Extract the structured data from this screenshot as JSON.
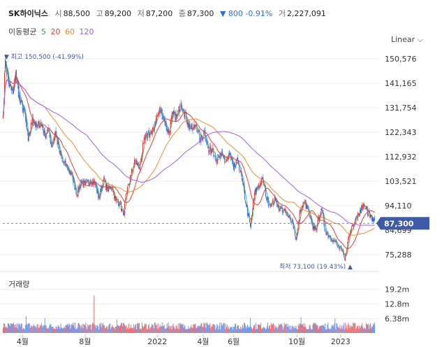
{
  "header": {
    "ticker": "SK하이닉스",
    "open_label": "시",
    "open": "88,500",
    "high_label": "고",
    "high": "89,200",
    "low_label": "저",
    "low": "87,200",
    "close_label": "종",
    "close": "87,300",
    "change": "▼ 800 -0.91%",
    "volume_label": "거",
    "volume": "2,227,091"
  },
  "ma_legend": {
    "title": "이동평균",
    "items": [
      {
        "label": "5",
        "color": "#43a047"
      },
      {
        "label": "20",
        "color": "#e53935"
      },
      {
        "label": "60",
        "color": "#ef8a2a"
      },
      {
        "label": "120",
        "color": "#a05cf0"
      }
    ]
  },
  "scale_toggle": "Linear ⌵",
  "colors": {
    "up": "#e0303a",
    "down": "#2f6ee0",
    "price_tag": "#3f5ba8",
    "grid": "#eeeeee"
  },
  "chart_data": {
    "type": "candlestick",
    "price_axis": {
      "ticks": [
        150576,
        141165,
        131754,
        122343,
        112932,
        103521,
        94110,
        84699,
        75288
      ],
      "tick_labels": [
        "150,576",
        "141,165",
        "131,754",
        "122,343",
        "112,932",
        "103,521",
        "94,110",
        "84,699",
        "75,288"
      ],
      "range": [
        71500,
        152500
      ]
    },
    "volume_axis": {
      "title": "거래량",
      "ticks": [
        19200000,
        12800000,
        6380000
      ],
      "tick_labels": [
        "19.2m",
        "12.8m",
        "6.38m"
      ],
      "range": [
        0,
        24000000
      ]
    },
    "x_axis": {
      "labels": [
        "4월",
        "8월",
        "2022",
        "4월",
        "6월",
        "10월",
        "2023"
      ]
    },
    "last_price": {
      "value": 87300,
      "label": "87,300"
    },
    "max_annotation": {
      "value": 150500,
      "text": "▼ 최고 150,500 (-41.99%)"
    },
    "min_annotation": {
      "value": 73100,
      "text": "최저 73,100 (19.43%) ▲"
    },
    "close_path": [
      [
        0,
        129000
      ],
      [
        3,
        150500
      ],
      [
        8,
        141000
      ],
      [
        14,
        137000
      ],
      [
        18,
        145500
      ],
      [
        24,
        134000
      ],
      [
        30,
        131000
      ],
      [
        36,
        119000
      ],
      [
        42,
        128000
      ],
      [
        48,
        124000
      ],
      [
        54,
        126500
      ],
      [
        60,
        121000
      ],
      [
        64,
        124000
      ],
      [
        70,
        117000
      ],
      [
        75,
        122500
      ],
      [
        80,
        116000
      ],
      [
        85,
        111000
      ],
      [
        92,
        109000
      ],
      [
        100,
        105000
      ],
      [
        106,
        98500
      ],
      [
        112,
        103500
      ],
      [
        118,
        102000
      ],
      [
        126,
        104000
      ],
      [
        132,
        103000
      ],
      [
        138,
        97000
      ],
      [
        144,
        104000
      ],
      [
        150,
        100500
      ],
      [
        157,
        101500
      ],
      [
        162,
        96000
      ],
      [
        168,
        95000
      ],
      [
        173,
        90500
      ],
      [
        178,
        99000
      ],
      [
        184,
        106000
      ],
      [
        190,
        111500
      ],
      [
        196,
        108500
      ],
      [
        202,
        118000
      ],
      [
        208,
        122000
      ],
      [
        214,
        121500
      ],
      [
        220,
        127500
      ],
      [
        226,
        131000
      ],
      [
        232,
        127000
      ],
      [
        238,
        122000
      ],
      [
        244,
        129000
      ],
      [
        250,
        128000
      ],
      [
        256,
        133500
      ],
      [
        260,
        131000
      ],
      [
        266,
        126000
      ],
      [
        272,
        123000
      ],
      [
        278,
        125500
      ],
      [
        284,
        119000
      ],
      [
        290,
        123000
      ],
      [
        296,
        114500
      ],
      [
        302,
        116500
      ],
      [
        308,
        111000
      ],
      [
        314,
        113500
      ],
      [
        320,
        111000
      ],
      [
        326,
        114000
      ],
      [
        332,
        108000
      ],
      [
        338,
        111500
      ],
      [
        344,
        104000
      ],
      [
        350,
        94000
      ],
      [
        356,
        86000
      ],
      [
        362,
        99000
      ],
      [
        368,
        102000
      ],
      [
        374,
        104000
      ],
      [
        380,
        96000
      ],
      [
        386,
        94500
      ],
      [
        392,
        96500
      ],
      [
        398,
        93000
      ],
      [
        404,
        92500
      ],
      [
        410,
        90000
      ],
      [
        416,
        88500
      ],
      [
        422,
        81000
      ],
      [
        428,
        92500
      ],
      [
        434,
        95500
      ],
      [
        440,
        91500
      ],
      [
        446,
        85000
      ],
      [
        452,
        86500
      ],
      [
        458,
        93000
      ],
      [
        464,
        84500
      ],
      [
        470,
        82000
      ],
      [
        476,
        81000
      ],
      [
        482,
        78500
      ],
      [
        488,
        76500
      ],
      [
        492,
        73100
      ],
      [
        496,
        80000
      ],
      [
        502,
        86000
      ],
      [
        508,
        89500
      ],
      [
        514,
        92500
      ],
      [
        520,
        94500
      ],
      [
        526,
        91000
      ],
      [
        532,
        89500
      ],
      [
        536,
        87300
      ]
    ],
    "volume_spikes": [
      [
        131,
        16500000
      ],
      [
        33,
        7500000
      ],
      [
        60,
        6500000
      ],
      [
        164,
        6000000
      ],
      [
        356,
        6500000
      ],
      [
        429,
        7000000
      ],
      [
        478,
        6500000
      ]
    ],
    "ma_periods": [
      5,
      20,
      60,
      120
    ]
  }
}
